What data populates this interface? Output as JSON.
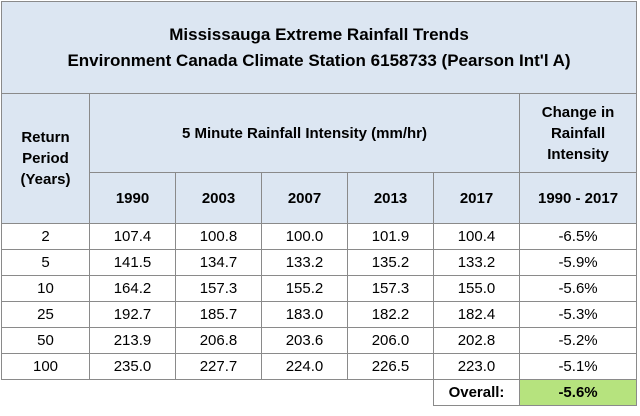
{
  "chart_data": {
    "type": "table",
    "title": "Mississauga Extreme Rainfall Trends",
    "subtitle": "Environment Canada Climate Station 6158733 (Pearson Int'l A)",
    "header": {
      "return_period": [
        "Return",
        "Period",
        "(Years)"
      ],
      "intensity_group": "5 Minute Rainfall Intensity (mm/hr)",
      "change_group": [
        "Change in",
        "Rainfall",
        "Intensity"
      ],
      "years": [
        "1990",
        "2003",
        "2007",
        "2013",
        "2017"
      ],
      "change_range": "1990 - 2017"
    },
    "rows": [
      {
        "period": "2",
        "values": [
          "107.4",
          "100.8",
          "100.0",
          "101.9",
          "100.4"
        ],
        "change": "-6.5%"
      },
      {
        "period": "5",
        "values": [
          "141.5",
          "134.7",
          "133.2",
          "135.2",
          "133.2"
        ],
        "change": "-5.9%"
      },
      {
        "period": "10",
        "values": [
          "164.2",
          "157.3",
          "155.2",
          "157.3",
          "155.0"
        ],
        "change": "-5.6%"
      },
      {
        "period": "25",
        "values": [
          "192.7",
          "185.7",
          "183.0",
          "182.2",
          "182.4"
        ],
        "change": "-5.3%"
      },
      {
        "period": "50",
        "values": [
          "213.9",
          "206.8",
          "203.6",
          "206.0",
          "202.8"
        ],
        "change": "-5.2%"
      },
      {
        "period": "100",
        "values": [
          "235.0",
          "227.7",
          "224.0",
          "226.5",
          "223.0"
        ],
        "change": "-5.1%"
      }
    ],
    "overall": {
      "label": "Overall:",
      "value": "-5.6%"
    }
  },
  "colors": {
    "header_bg": "#dce6f2",
    "change_text": "#2e9a3e",
    "overall_bg": "#b6e37e",
    "border": "#8a8a8a"
  }
}
